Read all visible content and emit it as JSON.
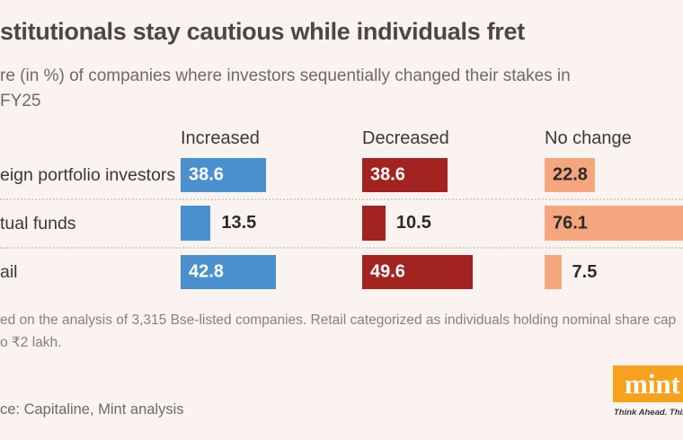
{
  "header": {
    "title": "stitutionals stay cautious while individuals fret",
    "subtitle_line1": "re (in %) of companies where investors sequentially changed their stakes in",
    "subtitle_line2": "FY25"
  },
  "chart_data": {
    "type": "bar",
    "orientation": "horizontal",
    "unit": "%",
    "value_labels": true,
    "legend_position": "column-headers",
    "categories": [
      "eign portfolio investors",
      "tual funds",
      "ail"
    ],
    "series": [
      {
        "name": "Increased",
        "color": "#4a90ce",
        "values": [
          38.6,
          13.5,
          42.8
        ]
      },
      {
        "name": "Decreased",
        "color": "#a32320",
        "values": [
          38.6,
          10.5,
          49.6
        ]
      },
      {
        "name": "No change",
        "color": "#f5a67f",
        "values": [
          22.8,
          76.1,
          7.5
        ]
      }
    ]
  },
  "footer": {
    "note_line1": "ed on the analysis of 3,315 Bse-listed companies. Retail categorized as individuals holding nominal share cap",
    "note_line2": "o ₹2 lakh.",
    "source": "ce: Capitaline, Mint analysis",
    "logo_text": "mint",
    "tagline": "Think Ahead. Think"
  },
  "colors": {
    "background": "#faf3ef",
    "increased": "#4a90ce",
    "decreased": "#a32320",
    "no_change": "#f5a67f",
    "logo_orange": "#f8a11e"
  }
}
